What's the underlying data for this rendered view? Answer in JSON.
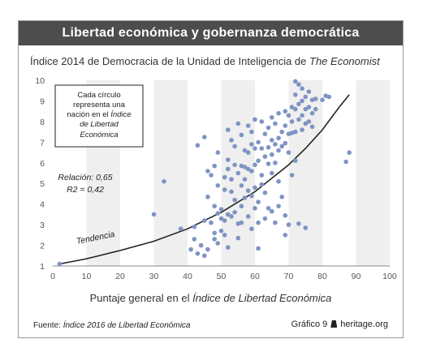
{
  "title": "Libertad económica y gobernanza democrática",
  "subtitle_prefix": "Índice 2014 de Democracia de la Unidad de Inteligencia de ",
  "subtitle_italic": "The Economist",
  "xlabel_prefix": "Puntaje general en el ",
  "xlabel_italic": "Índice de Libertad Económica",
  "source_label": "Fuente: ",
  "source_italic": "Índice 2016 de Libertad Económica",
  "credit_left": "Gráfico 9",
  "credit_right": "heritage.org",
  "colors": {
    "title_bg": "#4d4d4d",
    "dot": "#7f93c4",
    "curve": "#222222",
    "band": "#efefef"
  },
  "chart_data": {
    "type": "scatter",
    "xlim": [
      0,
      100
    ],
    "ylim": [
      1,
      10
    ],
    "xticks": [
      "0",
      "10",
      "20",
      "30",
      "40",
      "50",
      "60",
      "70",
      "80",
      "90",
      "100"
    ],
    "yticks": [
      "1",
      "2",
      "3",
      "4",
      "5",
      "6",
      "7",
      "8",
      "9",
      "10"
    ],
    "grid": "alternating vertical bands",
    "annotation_box": [
      "Cada círculo",
      "representa una",
      "nación en el ",
      "Índice de Libertad",
      "Económica"
    ],
    "stats": [
      "Relación: 0,65",
      "R2 = 0,42"
    ],
    "trend_label": "Tendencia",
    "trend": [
      [
        2,
        1.1
      ],
      [
        10,
        1.35
      ],
      [
        20,
        1.75
      ],
      [
        30,
        2.2
      ],
      [
        40,
        2.8
      ],
      [
        50,
        3.6
      ],
      [
        60,
        4.6
      ],
      [
        70,
        5.9
      ],
      [
        75,
        6.7
      ],
      [
        80,
        7.6
      ],
      [
        85,
        8.7
      ],
      [
        88,
        9.3
      ]
    ],
    "points": [
      [
        2,
        1.1
      ],
      [
        30,
        3.5
      ],
      [
        33,
        5.1
      ],
      [
        38,
        2.8
      ],
      [
        41,
        1.8
      ],
      [
        42,
        2.3
      ],
      [
        42,
        2.9
      ],
      [
        43,
        6.85
      ],
      [
        43,
        1.6
      ],
      [
        44,
        2.0
      ],
      [
        45,
        7.25
      ],
      [
        45,
        3.2
      ],
      [
        45,
        1.5
      ],
      [
        46,
        5.6
      ],
      [
        46,
        4.35
      ],
      [
        46,
        1.8
      ],
      [
        47,
        5.4
      ],
      [
        47,
        3.1
      ],
      [
        48,
        5.85
      ],
      [
        48,
        3.9
      ],
      [
        48,
        2.6
      ],
      [
        48,
        2.3
      ],
      [
        49,
        6.5
      ],
      [
        49,
        4.9
      ],
      [
        49,
        3.55
      ],
      [
        49,
        2.1
      ],
      [
        50,
        3.75
      ],
      [
        50,
        3.3
      ],
      [
        50,
        2.7
      ],
      [
        51,
        5.3
      ],
      [
        51,
        4.7
      ],
      [
        51,
        3.2
      ],
      [
        51,
        2.5
      ],
      [
        52,
        7.6
      ],
      [
        52,
        6.15
      ],
      [
        52,
        5.7
      ],
      [
        52,
        3.5
      ],
      [
        52,
        1.9
      ],
      [
        53,
        7.1
      ],
      [
        53,
        5.2
      ],
      [
        53,
        4.6
      ],
      [
        53,
        3.4
      ],
      [
        54,
        6.8
      ],
      [
        54,
        5.9
      ],
      [
        54,
        4.2
      ],
      [
        54,
        3.6
      ],
      [
        55,
        7.9
      ],
      [
        55,
        5.5
      ],
      [
        55,
        3.05
      ],
      [
        55,
        2.35
      ],
      [
        56,
        7.35
      ],
      [
        56,
        5.85
      ],
      [
        56,
        4.9
      ],
      [
        56,
        3.9
      ],
      [
        56,
        3.1
      ],
      [
        57,
        6.6
      ],
      [
        57,
        5.8
      ],
      [
        57,
        5.2
      ],
      [
        57,
        4.3
      ],
      [
        58,
        7.8
      ],
      [
        58,
        6.5
      ],
      [
        58,
        5.7
      ],
      [
        58,
        4.65
      ],
      [
        58,
        3.4
      ],
      [
        59,
        7.5
      ],
      [
        59,
        6.9
      ],
      [
        59,
        5.6
      ],
      [
        59,
        4.4
      ],
      [
        59,
        2.8
      ],
      [
        60,
        8.1
      ],
      [
        60,
        6.7
      ],
      [
        60,
        5.9
      ],
      [
        60,
        4.8
      ],
      [
        60,
        3.8
      ],
      [
        61,
        7.0
      ],
      [
        61,
        6.1
      ],
      [
        61,
        4.1
      ],
      [
        61,
        3.1
      ],
      [
        61,
        1.85
      ],
      [
        62,
        8.0
      ],
      [
        62,
        6.7
      ],
      [
        62,
        5.4
      ],
      [
        62,
        4.95
      ],
      [
        63,
        7.4
      ],
      [
        63,
        6.3
      ],
      [
        63,
        4.55
      ],
      [
        63,
        3.3
      ],
      [
        64,
        7.7
      ],
      [
        64,
        6.75
      ],
      [
        64,
        5.95
      ],
      [
        64,
        3.8
      ],
      [
        65,
        8.2
      ],
      [
        65,
        7.1
      ],
      [
        65,
        6.4
      ],
      [
        65,
        5.5
      ],
      [
        65,
        3.65
      ],
      [
        66,
        7.9
      ],
      [
        66,
        6.9
      ],
      [
        66,
        6.0
      ],
      [
        66,
        3.1
      ],
      [
        67,
        8.4
      ],
      [
        67,
        7.2
      ],
      [
        67,
        6.6
      ],
      [
        67,
        5.1
      ],
      [
        67,
        3.9
      ],
      [
        68,
        7.5
      ],
      [
        68,
        6.8
      ],
      [
        68,
        4.35
      ],
      [
        69,
        8.5
      ],
      [
        69,
        7.8
      ],
      [
        69,
        6.95
      ],
      [
        69,
        3.45
      ],
      [
        69,
        2.5
      ],
      [
        70,
        8.3
      ],
      [
        70,
        7.4
      ],
      [
        70,
        6.5
      ],
      [
        70,
        3.0
      ],
      [
        71,
        8.7
      ],
      [
        71,
        8.0
      ],
      [
        71,
        7.45
      ],
      [
        71,
        5.4
      ],
      [
        72,
        9.95
      ],
      [
        72,
        9.3
      ],
      [
        72,
        8.6
      ],
      [
        72,
        7.5
      ],
      [
        72,
        6.1
      ],
      [
        73,
        9.8
      ],
      [
        73,
        8.85
      ],
      [
        73,
        8.1
      ],
      [
        73,
        3.05
      ],
      [
        74,
        9.6
      ],
      [
        74,
        9.0
      ],
      [
        74,
        8.3
      ],
      [
        74,
        7.6
      ],
      [
        75,
        9.2
      ],
      [
        75,
        8.6
      ],
      [
        75,
        7.9
      ],
      [
        75,
        2.85
      ],
      [
        76,
        9.45
      ],
      [
        76,
        8.7
      ],
      [
        76,
        8.0
      ],
      [
        77,
        9.05
      ],
      [
        77,
        8.4
      ],
      [
        77,
        7.75
      ],
      [
        78,
        8.6
      ],
      [
        78,
        9.1
      ],
      [
        80,
        9.05
      ],
      [
        81,
        9.25
      ],
      [
        82,
        9.2
      ],
      [
        87,
        6.05
      ],
      [
        88,
        6.5
      ]
    ]
  }
}
